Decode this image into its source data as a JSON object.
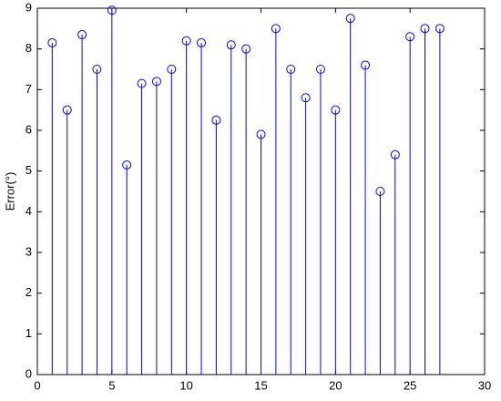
{
  "chart_data": {
    "type": "stem",
    "ylabel": "Error(°)",
    "x": [
      1,
      2,
      3,
      4,
      5,
      6,
      7,
      8,
      9,
      10,
      11,
      12,
      13,
      14,
      15,
      16,
      17,
      18,
      19,
      20,
      21,
      22,
      23,
      24,
      25,
      26,
      27
    ],
    "series": [
      {
        "color": "#0000ff",
        "values": [
          8.15,
          6.5,
          8.35,
          7.5,
          8.95,
          5.15,
          7.15,
          7.2,
          7.5,
          8.2,
          8.15,
          6.25,
          8.1,
          8.0,
          5.9,
          8.5,
          7.5,
          6.8,
          7.5,
          6.5,
          8.75,
          7.6,
          4.5,
          5.4,
          8.3,
          8.5,
          8.5
        ]
      }
    ],
    "xlim": [
      0,
      30
    ],
    "xticks": [
      0,
      5,
      10,
      15,
      20,
      25,
      30
    ],
    "ylim": [
      0,
      9
    ],
    "yticks": [
      0,
      1,
      2,
      3,
      4,
      5,
      6,
      7,
      8,
      9
    ]
  }
}
